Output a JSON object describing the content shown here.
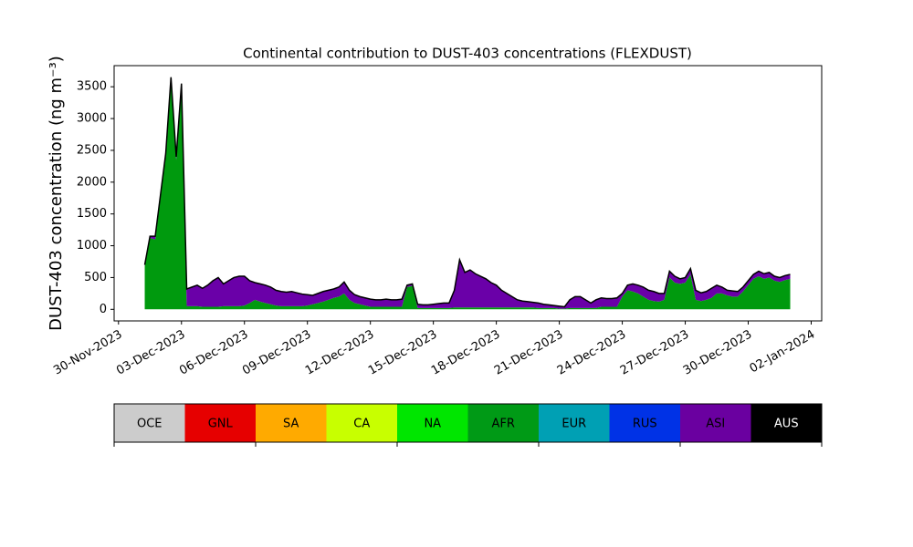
{
  "chart_data": {
    "type": "stacked_area",
    "title": "Continental contribution to DUST-403 concentrations (FLEXDUST)",
    "y_label": "DUST-403 concentration (ng m⁻³)",
    "x": [
      "2023-12-01T06:00",
      "2023-12-01T12:00",
      "2023-12-01T18:00",
      "2023-12-02T00:00",
      "2023-12-02T06:00",
      "2023-12-02T12:00",
      "2023-12-02T18:00",
      "2023-12-03T00:00",
      "2023-12-03T06:00",
      "2023-12-03T12:00",
      "2023-12-03T18:00",
      "2023-12-04T00:00",
      "2023-12-04T06:00",
      "2023-12-04T12:00",
      "2023-12-04T18:00",
      "2023-12-05T00:00",
      "2023-12-05T06:00",
      "2023-12-05T12:00",
      "2023-12-05T18:00",
      "2023-12-06T00:00",
      "2023-12-06T06:00",
      "2023-12-06T12:00",
      "2023-12-06T18:00",
      "2023-12-07T00:00",
      "2023-12-07T06:00",
      "2023-12-07T12:00",
      "2023-12-07T18:00",
      "2023-12-08T00:00",
      "2023-12-08T06:00",
      "2023-12-08T12:00",
      "2023-12-08T18:00",
      "2023-12-09T00:00",
      "2023-12-09T06:00",
      "2023-12-09T12:00",
      "2023-12-09T18:00",
      "2023-12-10T00:00",
      "2023-12-10T06:00",
      "2023-12-10T12:00",
      "2023-12-10T18:00",
      "2023-12-11T00:00",
      "2023-12-11T06:00",
      "2023-12-11T12:00",
      "2023-12-11T18:00",
      "2023-12-12T00:00",
      "2023-12-12T06:00",
      "2023-12-12T12:00",
      "2023-12-12T18:00",
      "2023-12-13T00:00",
      "2023-12-13T06:00",
      "2023-12-13T12:00",
      "2023-12-13T18:00",
      "2023-12-14T00:00",
      "2023-12-14T06:00",
      "2023-12-14T12:00",
      "2023-12-14T18:00",
      "2023-12-15T00:00",
      "2023-12-15T06:00",
      "2023-12-15T12:00",
      "2023-12-15T18:00",
      "2023-12-16T00:00",
      "2023-12-16T06:00",
      "2023-12-16T12:00",
      "2023-12-16T18:00",
      "2023-12-17T00:00",
      "2023-12-17T06:00",
      "2023-12-17T12:00",
      "2023-12-17T18:00",
      "2023-12-18T00:00",
      "2023-12-18T06:00",
      "2023-12-18T12:00",
      "2023-12-18T18:00",
      "2023-12-19T00:00",
      "2023-12-19T06:00",
      "2023-12-19T12:00",
      "2023-12-19T18:00",
      "2023-12-20T00:00",
      "2023-12-20T06:00",
      "2023-12-20T12:00",
      "2023-12-20T18:00",
      "2023-12-21T00:00",
      "2023-12-21T06:00",
      "2023-12-21T12:00",
      "2023-12-21T18:00",
      "2023-12-22T00:00",
      "2023-12-22T06:00",
      "2023-12-22T12:00",
      "2023-12-22T18:00",
      "2023-12-23T00:00",
      "2023-12-23T06:00",
      "2023-12-23T12:00",
      "2023-12-23T18:00",
      "2023-12-24T00:00",
      "2023-12-24T06:00",
      "2023-12-24T12:00",
      "2023-12-24T18:00",
      "2023-12-25T00:00",
      "2023-12-25T06:00",
      "2023-12-25T12:00",
      "2023-12-25T18:00",
      "2023-12-26T00:00",
      "2023-12-26T06:00",
      "2023-12-26T12:00",
      "2023-12-26T18:00",
      "2023-12-27T00:00",
      "2023-12-27T06:00",
      "2023-12-27T12:00",
      "2023-12-27T18:00",
      "2023-12-28T00:00",
      "2023-12-28T06:00",
      "2023-12-28T12:00",
      "2023-12-28T18:00",
      "2023-12-29T00:00",
      "2023-12-29T06:00",
      "2023-12-29T12:00",
      "2023-12-29T18:00",
      "2023-12-30T00:00",
      "2023-12-30T06:00",
      "2023-12-30T12:00",
      "2023-12-30T18:00",
      "2023-12-31T00:00",
      "2023-12-31T06:00",
      "2023-12-31T12:00",
      "2023-12-31T18:00",
      "2024-01-01T00:00"
    ],
    "series": [
      {
        "name": "AFR",
        "color": "#009a0e",
        "values": [
          680,
          1120,
          1100,
          1750,
          2400,
          3600,
          2350,
          3480,
          50,
          50,
          50,
          40,
          40,
          40,
          40,
          50,
          50,
          50,
          50,
          60,
          100,
          150,
          120,
          100,
          80,
          60,
          50,
          50,
          50,
          50,
          50,
          60,
          80,
          100,
          120,
          150,
          180,
          200,
          250,
          150,
          100,
          80,
          60,
          40,
          40,
          40,
          40,
          40,
          40,
          40,
          350,
          370,
          20,
          20,
          20,
          20,
          20,
          20,
          20,
          30,
          30,
          30,
          30,
          30,
          30,
          30,
          30,
          30,
          30,
          30,
          30,
          30,
          30,
          30,
          30,
          20,
          20,
          20,
          20,
          10,
          10,
          20,
          20,
          20,
          20,
          20,
          20,
          40,
          40,
          40,
          40,
          200,
          300,
          280,
          250,
          200,
          150,
          130,
          120,
          150,
          500,
          420,
          400,
          420,
          550,
          150,
          130,
          150,
          180,
          250,
          250,
          220,
          200,
          200,
          280,
          380,
          480,
          520,
          480,
          500,
          450,
          430,
          460,
          480
        ]
      },
      {
        "name": "ASI",
        "color": "#6a00a8",
        "values": [
          20,
          30,
          50,
          50,
          50,
          50,
          50,
          70,
          270,
          300,
          330,
          290,
          340,
          410,
          460,
          350,
          400,
          450,
          470,
          460,
          350,
          270,
          280,
          280,
          270,
          240,
          230,
          220,
          230,
          210,
          190,
          170,
          140,
          150,
          160,
          150,
          140,
          150,
          180,
          150,
          130,
          120,
          120,
          120,
          110,
          110,
          120,
          110,
          110,
          120,
          30,
          30,
          60,
          50,
          50,
          60,
          70,
          80,
          80,
          270,
          750,
          550,
          590,
          530,
          490,
          450,
          390,
          350,
          270,
          220,
          170,
          120,
          100,
          90,
          80,
          80,
          60,
          50,
          40,
          40,
          30,
          130,
          180,
          180,
          130,
          80,
          130,
          140,
          130,
          130,
          140,
          50,
          80,
          120,
          130,
          150,
          150,
          150,
          130,
          100,
          100,
          100,
          80,
          80,
          90,
          150,
          130,
          130,
          150,
          130,
          100,
          80,
          90,
          80,
          70,
          70,
          70,
          80,
          80,
          80,
          70,
          70,
          70,
          70
        ]
      }
    ],
    "xlim": [
      "2023-11-29T19:00",
      "2024-01-02T12:00"
    ],
    "xticks": [
      {
        "value": "2023-11-30T00:00",
        "label": "30-Nov-2023"
      },
      {
        "value": "2023-12-03T00:00",
        "label": "03-Dec-2023"
      },
      {
        "value": "2023-12-06T00:00",
        "label": "06-Dec-2023"
      },
      {
        "value": "2023-12-09T00:00",
        "label": "09-Dec-2023"
      },
      {
        "value": "2023-12-12T00:00",
        "label": "12-Dec-2023"
      },
      {
        "value": "2023-12-15T00:00",
        "label": "15-Dec-2023"
      },
      {
        "value": "2023-12-18T00:00",
        "label": "18-Dec-2023"
      },
      {
        "value": "2023-12-21T00:00",
        "label": "21-Dec-2023"
      },
      {
        "value": "2023-12-24T00:00",
        "label": "24-Dec-2023"
      },
      {
        "value": "2023-12-27T00:00",
        "label": "27-Dec-2023"
      },
      {
        "value": "2023-12-30T00:00",
        "label": "30-Dec-2023"
      },
      {
        "value": "2024-01-02T00:00",
        "label": "02-Jan-2024"
      }
    ],
    "ylim": [
      -182,
      3832
    ],
    "yticks": [
      0,
      500,
      1000,
      1500,
      2000,
      2500,
      3000,
      3500
    ],
    "outline_color": "#000000",
    "colorbar": {
      "labels": [
        "OCE",
        "GNL",
        "SA",
        "CA",
        "NA",
        "AFR",
        "EUR",
        "RUS",
        "ASI",
        "AUS"
      ],
      "colors": [
        "#cccccc",
        "#e60000",
        "#ffaa00",
        "#c8ff00",
        "#00e600",
        "#009a16",
        "#00a0b4",
        "#0032e6",
        "#6a00a0",
        "#000000"
      ]
    }
  }
}
